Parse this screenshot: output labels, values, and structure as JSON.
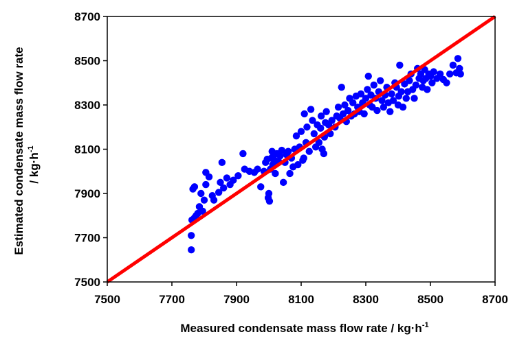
{
  "chart_data": {
    "type": "scatter",
    "title": "",
    "xlabel": "Measured condensate mass flow rate / kg·h",
    "xlabel_sup": "-1",
    "ylabel": "Estimated condensate mass flow rate",
    "ylabel_line2": "/ kg·h",
    "ylabel_sup": "-1",
    "xlim": [
      7500,
      8700
    ],
    "ylim": [
      7500,
      8700
    ],
    "x_ticks": [
      "7500",
      "7700",
      "7900",
      "8100",
      "8300",
      "8500",
      "8700"
    ],
    "y_ticks": [
      "7500",
      "7700",
      "7900",
      "8100",
      "8300",
      "8500",
      "8700"
    ],
    "grid": false,
    "legend": "none",
    "colors": {
      "points": "#0000ff",
      "parity_line": "#ff0000"
    },
    "series": [
      {
        "type": "line",
        "points": [
          [
            7500,
            7500
          ],
          [
            8700,
            8700
          ]
        ]
      },
      {
        "type": "scatter",
        "points": [
          [
            7760,
            7645
          ],
          [
            7760,
            7710
          ],
          [
            7762,
            7780
          ],
          [
            7770,
            7790
          ],
          [
            7775,
            7800
          ],
          [
            7765,
            7920
          ],
          [
            7770,
            7930
          ],
          [
            7780,
            7810
          ],
          [
            7785,
            7840
          ],
          [
            7795,
            7820
          ],
          [
            7790,
            7900
          ],
          [
            7800,
            7870
          ],
          [
            7805,
            7940
          ],
          [
            7805,
            7995
          ],
          [
            7815,
            7975
          ],
          [
            7825,
            7890
          ],
          [
            7830,
            7870
          ],
          [
            7845,
            7905
          ],
          [
            7850,
            7950
          ],
          [
            7855,
            8040
          ],
          [
            7860,
            7925
          ],
          [
            7870,
            7970
          ],
          [
            7880,
            7940
          ],
          [
            7890,
            7960
          ],
          [
            7905,
            7980
          ],
          [
            7920,
            8080
          ],
          [
            7925,
            8010
          ],
          [
            7940,
            8000
          ],
          [
            7955,
            7995
          ],
          [
            7965,
            8010
          ],
          [
            7975,
            7930
          ],
          [
            7985,
            8000
          ],
          [
            7990,
            8040
          ],
          [
            7995,
            8055
          ],
          [
            7998,
            7880
          ],
          [
            8000,
            7900
          ],
          [
            8002,
            7865
          ],
          [
            8005,
            8010
          ],
          [
            8008,
            8060
          ],
          [
            8010,
            8090
          ],
          [
            8012,
            8030
          ],
          [
            8015,
            8075
          ],
          [
            8018,
            8050
          ],
          [
            8020,
            7990
          ],
          [
            8025,
            8080
          ],
          [
            8030,
            8045
          ],
          [
            8035,
            8070
          ],
          [
            8040,
            8095
          ],
          [
            8045,
            7950
          ],
          [
            8050,
            8040
          ],
          [
            8055,
            8075
          ],
          [
            8060,
            8090
          ],
          [
            8065,
            7990
          ],
          [
            8070,
            8060
          ],
          [
            8075,
            8020
          ],
          [
            8080,
            8100
          ],
          [
            8085,
            8160
          ],
          [
            8090,
            8030
          ],
          [
            8095,
            8110
          ],
          [
            8100,
            8180
          ],
          [
            8105,
            8050
          ],
          [
            8108,
            8060
          ],
          [
            8110,
            8260
          ],
          [
            8115,
            8130
          ],
          [
            8118,
            8200
          ],
          [
            8125,
            8090
          ],
          [
            8130,
            8280
          ],
          [
            8135,
            8230
          ],
          [
            8140,
            8170
          ],
          [
            8145,
            8110
          ],
          [
            8150,
            8210
          ],
          [
            8155,
            8130
          ],
          [
            8160,
            8195
          ],
          [
            8162,
            8250
          ],
          [
            8165,
            8100
          ],
          [
            8170,
            8080
          ],
          [
            8172,
            8155
          ],
          [
            8175,
            8220
          ],
          [
            8178,
            8270
          ],
          [
            8185,
            8210
          ],
          [
            8190,
            8170
          ],
          [
            8195,
            8230
          ],
          [
            8205,
            8200
          ],
          [
            8210,
            8250
          ],
          [
            8215,
            8290
          ],
          [
            8220,
            8240
          ],
          [
            8225,
            8380
          ],
          [
            8230,
            8260
          ],
          [
            8235,
            8300
          ],
          [
            8240,
            8225
          ],
          [
            8245,
            8275
          ],
          [
            8250,
            8330
          ],
          [
            8255,
            8250
          ],
          [
            8260,
            8310
          ],
          [
            8265,
            8260
          ],
          [
            8270,
            8340
          ],
          [
            8275,
            8290
          ],
          [
            8280,
            8270
          ],
          [
            8285,
            8350
          ],
          [
            8290,
            8310
          ],
          [
            8295,
            8260
          ],
          [
            8300,
            8330
          ],
          [
            8305,
            8370
          ],
          [
            8308,
            8430
          ],
          [
            8312,
            8300
          ],
          [
            8316,
            8345
          ],
          [
            8320,
            8290
          ],
          [
            8325,
            8390
          ],
          [
            8330,
            8330
          ],
          [
            8335,
            8275
          ],
          [
            8340,
            8360
          ],
          [
            8345,
            8410
          ],
          [
            8350,
            8320
          ],
          [
            8355,
            8290
          ],
          [
            8360,
            8345
          ],
          [
            8365,
            8380
          ],
          [
            8370,
            8310
          ],
          [
            8375,
            8270
          ],
          [
            8380,
            8350
          ],
          [
            8385,
            8320
          ],
          [
            8390,
            8400
          ],
          [
            8395,
            8380
          ],
          [
            8400,
            8300
          ],
          [
            8402,
            8340
          ],
          [
            8405,
            8480
          ],
          [
            8410,
            8360
          ],
          [
            8415,
            8290
          ],
          [
            8420,
            8395
          ],
          [
            8425,
            8330
          ],
          [
            8430,
            8360
          ],
          [
            8435,
            8410
          ],
          [
            8440,
            8440
          ],
          [
            8445,
            8370
          ],
          [
            8450,
            8330
          ],
          [
            8455,
            8390
          ],
          [
            8460,
            8465
          ],
          [
            8465,
            8420
          ],
          [
            8470,
            8440
          ],
          [
            8475,
            8380
          ],
          [
            8478,
            8410
          ],
          [
            8482,
            8460
          ],
          [
            8486,
            8420
          ],
          [
            8490,
            8370
          ],
          [
            8495,
            8440
          ],
          [
            8500,
            8430
          ],
          [
            8505,
            8400
          ],
          [
            8510,
            8450
          ],
          [
            8520,
            8420
          ],
          [
            8530,
            8440
          ],
          [
            8540,
            8415
          ],
          [
            8550,
            8400
          ],
          [
            8560,
            8440
          ],
          [
            8570,
            8480
          ],
          [
            8580,
            8445
          ],
          [
            8585,
            8510
          ],
          [
            8590,
            8465
          ],
          [
            8593,
            8440
          ]
        ]
      }
    ]
  }
}
